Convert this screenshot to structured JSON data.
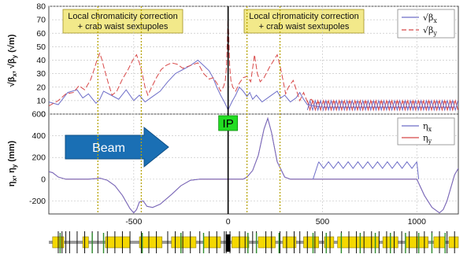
{
  "chart_data": [
    {
      "type": "line",
      "ylabel": "√β_x, √β_y (√m)",
      "ylim": [
        0,
        80
      ],
      "yticks": [
        0,
        10,
        20,
        30,
        40,
        50,
        60,
        70,
        80
      ],
      "xlim": [
        -950,
        1220
      ],
      "grid": true,
      "legend_position": "top-right",
      "annotations": [
        "Local chromaticity correction\n+ crab waist sextupoles",
        "Local chromaticity correction\n+ crab waist sextupoles"
      ],
      "series": [
        {
          "name": "√β_x",
          "color": "#6e6ec8",
          "x": [
            -950,
            -900,
            -850,
            -800,
            -770,
            -740,
            -700,
            -680,
            -660,
            -620,
            -580,
            -540,
            -500,
            -470,
            -440,
            -400,
            -360,
            -320,
            -280,
            -240,
            -200,
            -160,
            -130,
            -100,
            -80,
            -60,
            -40,
            -20,
            -10,
            0,
            10,
            20,
            40,
            60,
            80,
            100,
            115,
            130,
            150,
            180,
            220,
            260,
            280,
            300,
            330,
            360,
            380,
            400,
            420,
            460,
            500,
            600,
            700,
            800,
            900,
            1000,
            1100,
            1200
          ],
          "y": [
            9,
            7,
            16,
            18,
            12,
            15,
            8,
            11,
            17,
            14,
            11,
            18,
            10,
            14,
            9,
            13,
            17,
            24,
            30,
            33,
            36,
            40,
            36,
            32,
            27,
            20,
            14,
            9,
            6,
            3,
            6,
            9,
            14,
            20,
            17,
            13,
            16,
            11,
            14,
            9,
            13,
            17,
            12,
            14,
            9,
            12,
            16,
            11,
            7,
            6,
            5,
            5,
            5,
            5,
            5,
            5,
            5,
            5
          ]
        },
        {
          "name": "√β_y",
          "color": "#d84848",
          "x": [
            -950,
            -900,
            -860,
            -820,
            -790,
            -760,
            -730,
            -710,
            -695,
            -680,
            -670,
            -655,
            -635,
            -615,
            -590,
            -560,
            -530,
            -505,
            -485,
            -470,
            -455,
            -440,
            -425,
            -405,
            -380,
            -355,
            -330,
            -300,
            -270,
            -240,
            -200,
            -160,
            -130,
            -100,
            -80,
            -60,
            -40,
            -25,
            -15,
            -8,
            -4,
            0,
            4,
            8,
            15,
            25,
            40,
            60,
            80,
            100,
            120,
            130,
            140,
            155,
            170,
            190,
            220,
            260,
            275,
            290,
            305,
            320,
            345,
            380,
            400,
            420,
            440,
            460,
            500,
            600,
            700,
            800,
            900,
            1000,
            1100,
            1200
          ],
          "y": [
            6,
            10,
            15,
            16,
            21,
            18,
            25,
            33,
            40,
            45,
            41,
            33,
            23,
            14,
            17,
            26,
            33,
            40,
            44,
            38,
            30,
            20,
            14,
            20,
            27,
            33,
            36,
            38,
            37,
            34,
            36,
            38,
            30,
            26,
            27,
            23,
            17,
            20,
            25,
            36,
            55,
            73,
            55,
            36,
            25,
            20,
            17,
            23,
            27,
            28,
            24,
            34,
            44,
            30,
            24,
            27,
            35,
            44,
            36,
            26,
            15,
            20,
            25,
            10,
            16,
            9,
            11,
            8,
            9,
            9,
            9,
            9,
            9,
            9,
            9,
            9
          ]
        }
      ],
      "ripple_region_x": [
        420,
        1220
      ]
    },
    {
      "type": "line",
      "xlabel": "",
      "ylabel": "η_x, η_y (mm)",
      "ylim": [
        -320,
        600
      ],
      "yticks": [
        -200,
        0,
        200,
        400,
        600
      ],
      "xlim": [
        -950,
        1220
      ],
      "xticks": [
        -500,
        0,
        500,
        1000
      ],
      "grid": true,
      "legend_position": "top-right",
      "series": [
        {
          "name": "η_x",
          "color": "#6e6ec8",
          "x": [
            -950,
            -930,
            -900,
            -860,
            -820,
            -780,
            -740,
            -700,
            -680,
            -640,
            -600,
            -560,
            -520,
            -500,
            -485,
            -470,
            -450,
            -430,
            -400,
            -360,
            -300,
            -250,
            -200,
            -150,
            -100,
            -50,
            0,
            50,
            80,
            100,
            130,
            160,
            190,
            210,
            230,
            260,
            300,
            330,
            360,
            380,
            400,
            420,
            440,
            460,
            480,
            1000,
            1040,
            1080,
            1120,
            1140,
            1160,
            1180,
            1200,
            1220
          ],
          "y": [
            70,
            60,
            20,
            0,
            0,
            0,
            0,
            5,
            10,
            -10,
            -60,
            -150,
            -270,
            -310,
            -280,
            -210,
            -200,
            -250,
            -260,
            -230,
            -140,
            -60,
            -10,
            0,
            0,
            0,
            0,
            0,
            0,
            20,
            80,
            220,
            460,
            560,
            430,
            160,
            20,
            0,
            0,
            0,
            0,
            0,
            0,
            0,
            0,
            0,
            -150,
            -260,
            -310,
            -280,
            -200,
            -80,
            40,
            100
          ]
        },
        {
          "name": "η_y",
          "color": "#d84848",
          "x": [
            -950,
            1220
          ],
          "y": [
            0,
            0
          ]
        }
      ],
      "sawtooth": {
        "x_start": 480,
        "x_end": 1000,
        "low": 100,
        "high": 160,
        "teeth": 10
      },
      "annotations": [
        "Beam",
        "IP"
      ]
    }
  ],
  "labels": {
    "annot_left_l1": "Local chromaticity correction",
    "annot_left_l2": "+ crab waist sextupoles",
    "annot_right_l1": "Local chromaticity correction",
    "annot_right_l2": "+ crab waist sextupoles",
    "beam": "Beam",
    "ip": "IP"
  },
  "markers_x": [
    -690,
    -460,
    100,
    275
  ],
  "lattice": {
    "dipole_segments": [
      [
        -930,
        -870
      ],
      [
        -770,
        -740
      ],
      [
        -650,
        -520
      ],
      [
        -470,
        -350
      ],
      [
        -300,
        -170
      ],
      [
        -130,
        -40
      ],
      [
        20,
        110
      ],
      [
        160,
        250
      ],
      [
        290,
        360
      ],
      [
        400,
        480
      ],
      [
        510,
        560
      ],
      [
        580,
        800
      ],
      [
        820,
        900
      ],
      [
        940,
        1060
      ],
      [
        1090,
        1150
      ],
      [
        1170,
        1220
      ]
    ],
    "thin_elements": [
      -900,
      -880,
      -860,
      -840,
      -800,
      -760,
      -720,
      -690,
      -640,
      -600,
      -560,
      -520,
      -460,
      -420,
      -380,
      -320,
      -280,
      -240,
      -200,
      -150,
      -100,
      -60,
      -20,
      -10,
      10,
      60,
      90,
      130,
      150,
      200,
      230,
      275,
      310,
      350,
      380,
      420,
      460,
      500,
      540,
      600,
      640,
      680,
      720,
      760,
      800,
      840,
      880,
      920,
      960,
      1000,
      1040,
      1080,
      1120,
      1160,
      1200
    ],
    "green_elements": [
      -890,
      -720,
      -660,
      -455,
      -250,
      -130,
      105,
      150,
      270,
      450,
      520,
      600,
      700,
      780,
      860,
      940,
      1010,
      1080,
      1150
    ]
  },
  "colors": {
    "beta_x": "#6e6ec8",
    "beta_y": "#d84848",
    "marker": "#b8a400",
    "annot_box": "#f2e98a",
    "beam_arrow": "#1a6fb4",
    "ip_box": "#22dd22",
    "dipole": "#f5d800",
    "element_line": "#111111",
    "green_element": "#2e8b2e"
  }
}
